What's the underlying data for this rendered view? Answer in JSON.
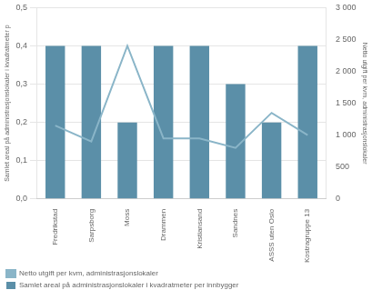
{
  "chart_data": {
    "type": "bar",
    "categories": [
      "Fredrikstad",
      "Sarpsborg",
      "Moss",
      "Drammen",
      "Kristiansand",
      "Sandnes",
      "ASSS uten Oslo",
      "Kostragruppe 13"
    ],
    "series": [
      {
        "name": "Samlet areal på administrasjonslokaler i kvadratmeter per innbygger",
        "type": "bar",
        "color": "#5b8fa8",
        "values": [
          0.4,
          0.4,
          0.2,
          0.4,
          0.4,
          0.3,
          0.2,
          0.4
        ]
      },
      {
        "name": "Netto utgift per kvm, administrasjonslokaler",
        "type": "line",
        "color": "#8ab5c8",
        "axis": "y2",
        "values": [
          1150,
          900,
          2400,
          950,
          950,
          800,
          1350,
          1000
        ]
      }
    ],
    "ylabel": "Samlet areal på administrasjonslokaler i kvadratmeter p",
    "y2label": "Netto utgift per kvm, administrasjonslokaler",
    "ylim": [
      0,
      0.5
    ],
    "yticks": [
      {
        "value": 0.0,
        "label": "0,0"
      },
      {
        "value": 0.1,
        "label": "0,1"
      },
      {
        "value": 0.2,
        "label": "0,2"
      },
      {
        "value": 0.3,
        "label": "0,3"
      },
      {
        "value": 0.4,
        "label": "0,4"
      },
      {
        "value": 0.5,
        "label": "0,5"
      }
    ],
    "y2lim": [
      0,
      3000
    ],
    "y2ticks": [
      0,
      500,
      {
        "value": 1000,
        "label": "1 000"
      },
      {
        "value": 1500,
        "label": "1 500"
      },
      {
        "value": 2000,
        "label": "2 000"
      },
      {
        "value": 2500,
        "label": "2 500"
      },
      {
        "value": 3000,
        "label": "3 000"
      }
    ],
    "grid": true,
    "legend": "bottom"
  }
}
